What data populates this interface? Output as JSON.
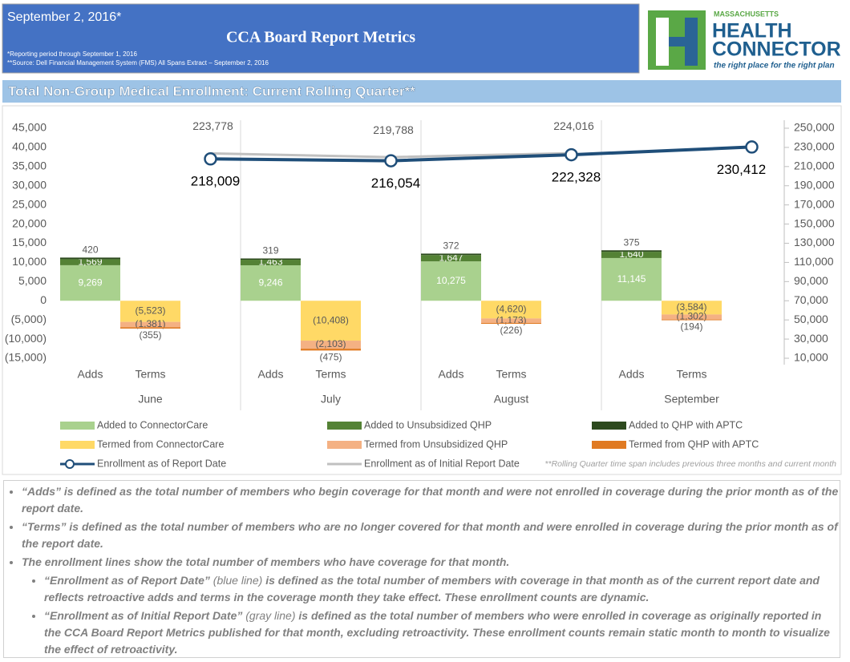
{
  "header": {
    "date": "September 2, 2016*",
    "title": "CCA Board Report Metrics",
    "footnotes": [
      "*Reporting period through September 1, 2016",
      "**Source: Dell Financial Management System (FMS) All Spans Extract – September 2, 2016"
    ]
  },
  "logo": {
    "state": "MASSACHUSETTS",
    "line1": "HEALTH",
    "line2": "CONNECTOR",
    "tagline": "the right place for the right plan"
  },
  "section_title": "Total Non-Group Medical Enrollment: Current Rolling Quarter**",
  "chart_data": {
    "type": "bar",
    "categories": [
      "June",
      "July",
      "August",
      "September"
    ],
    "subcategories": [
      "Adds",
      "Terms"
    ],
    "ylim": [
      -15000,
      45000
    ],
    "yticks": [
      {
        "value": 45000,
        "label": "45,000"
      },
      {
        "value": 40000,
        "label": "40,000"
      },
      {
        "value": 35000,
        "label": "35,000"
      },
      {
        "value": 30000,
        "label": "30,000"
      },
      {
        "value": 25000,
        "label": "25,000"
      },
      {
        "value": 20000,
        "label": "20,000"
      },
      {
        "value": 15000,
        "label": "15,000"
      },
      {
        "value": 10000,
        "label": "10,000"
      },
      {
        "value": 5000,
        "label": "5,000"
      },
      0,
      {
        "value": -5000,
        "label": "(5,000)"
      },
      {
        "value": -10000,
        "label": "(10,000)"
      },
      {
        "value": -15000,
        "label": "(15,000)"
      }
    ],
    "y2lim": [
      10000,
      250000
    ],
    "y2ticks": [
      {
        "value": 250000,
        "label": "250,000"
      },
      {
        "value": 230000,
        "label": "230,000"
      },
      {
        "value": 210000,
        "label": "210,000"
      },
      {
        "value": 190000,
        "label": "190,000"
      },
      {
        "value": 170000,
        "label": "170,000"
      },
      {
        "value": 150000,
        "label": "150,000"
      },
      {
        "value": 130000,
        "label": "130,000"
      },
      {
        "value": 110000,
        "label": "110,000"
      },
      {
        "value": 90000,
        "label": "90,000"
      },
      {
        "value": 70000,
        "label": "70,000"
      },
      {
        "value": 50000,
        "label": "50,000"
      },
      {
        "value": 30000,
        "label": "30,000"
      },
      {
        "value": 10000,
        "label": "10,000"
      }
    ],
    "series": [
      {
        "name": "Added to ConnectorCare",
        "type": "bar",
        "color": "#a9d18e",
        "values": [
          9269,
          9246,
          10275,
          11145
        ],
        "value_labels": [
          "9,269",
          "9,246",
          "10,275",
          "11,145"
        ]
      },
      {
        "name": "Added to Unsubsidized QHP",
        "type": "bar",
        "color": "#548235",
        "values": [
          1569,
          1463,
          1647,
          1640
        ],
        "value_labels": [
          "1,569",
          "1,463",
          "1,647",
          "1,640"
        ]
      },
      {
        "name": "Added to QHP with APTC",
        "type": "bar",
        "color": "#2d4a1e",
        "values": [
          420,
          319,
          372,
          375
        ],
        "value_labels": [
          "420",
          "319",
          "372",
          "375"
        ]
      },
      {
        "name": "Termed from ConnectorCare",
        "type": "bar",
        "color": "#ffd966",
        "values": [
          -5523,
          -10408,
          -4620,
          -3584
        ],
        "value_labels": [
          "(5,523)",
          "(10,408)",
          "(4,620)",
          "(3,584)"
        ]
      },
      {
        "name": "Termed from Unsubsidized QHP",
        "type": "bar",
        "color": "#f4b183",
        "values": [
          -1381,
          -2103,
          -1173,
          -1302
        ],
        "value_labels": [
          "(1,381)",
          "(2,103)",
          "(1,173)",
          "(1,302)"
        ]
      },
      {
        "name": "Termed from QHP with APTC",
        "type": "bar",
        "color": "#e07a22",
        "values": [
          -355,
          -475,
          -226,
          -194
        ],
        "value_labels": [
          "(355)",
          "(475)",
          "(226)",
          "(194)"
        ]
      },
      {
        "name": "Enrollment as of Initial Report Date",
        "type": "line",
        "axis": "y2",
        "color": "#c0c0c0",
        "values": [
          223778,
          219788,
          224016,
          null
        ],
        "value_labels": [
          "223,778",
          "219,788",
          "224,016",
          null
        ]
      },
      {
        "name": "Enrollment as of Report Date",
        "type": "line",
        "axis": "y2",
        "color": "#1f4e79",
        "values": [
          218009,
          216054,
          222328,
          230412
        ],
        "value_labels": [
          "218,009",
          "216,054",
          "222,328",
          "230,412"
        ]
      }
    ],
    "footnote": "**Rolling Quarter time span includes previous three months and current month"
  },
  "notes": [
    [
      "“Adds” is defined as the total number of members who begin coverage for that month and were not enrolled in coverage during the prior month as of the report date."
    ],
    [
      "“Terms” is defined as the total number of members who are no longer covered for that month and were enrolled in coverage during the prior month as of the report date."
    ],
    [
      "The enrollment lines show the total number of members who have coverage for that month."
    ]
  ],
  "subnotes": [
    [
      "“Enrollment as of Report Date”",
      " (blue line) ",
      "is defined as the total number of members with coverage in that month as of the current report date and reflects retroactive adds and terms in the coverage month they take effect. These enrollment counts are dynamic."
    ],
    [
      "“Enrollment as of Initial Report Date”",
      " (gray line) ",
      "is defined as the total number of members who were enrolled in coverage as originally reported in the CCA Board Report Metrics published for that month, excluding retroactivity. These enrollment counts remain static month to month to visualize the effect of retroactivity."
    ]
  ]
}
